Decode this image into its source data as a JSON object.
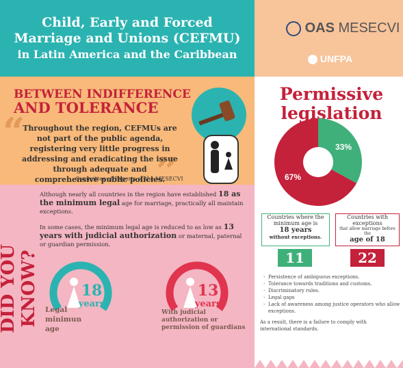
{
  "header": {
    "title": [
      "Child, Early and Forced",
      "Marriage and Unions (CEFMU)",
      "in Latin America and the Caribbean"
    ],
    "logos": [
      "OAS",
      "MESECVI",
      "UNFPA"
    ]
  },
  "intro": {
    "heading": [
      "BETWEEN INDIFFERENCE",
      "AND TOLERANCE"
    ],
    "quote": "Throughout the region, CEFMUs are not part of the public agenda, registering very little progress in addressing and eradicating the issue through adequate and comprehensive public policies.",
    "source": "Committee of Experts of the MESECVI"
  },
  "chart_data": {
    "type": "pie",
    "title": "Permissive legislation",
    "values": [
      67,
      33
    ],
    "value_labels": [
      "67%",
      "33%"
    ],
    "colors": [
      "#c4213a",
      "#3fb07a"
    ]
  },
  "stats": [
    {
      "text": [
        "Countries where the minimum age is",
        "18 years",
        "without exceptions."
      ],
      "count": 11
    },
    {
      "text": [
        "Countries with exceptions",
        "that allow marriage before the",
        "age of 18"
      ],
      "count": 22
    }
  ],
  "did_you_know": {
    "label": "DID YOU KNOW?",
    "paragraphs": [
      [
        "Although nearly all countries in the region have established ",
        "18 as the minimum legal",
        " age for marriage, practically all maintain exceptions."
      ],
      [
        "In some cases, the minimum legal age is reduced to as low as ",
        "13 years with judicial authorization",
        " or maternal, paternal or guardian permission."
      ]
    ],
    "gauges": [
      {
        "number": 18,
        "unit": "years",
        "caption": "Legal minimun age"
      },
      {
        "number": 13,
        "unit": "years",
        "caption": "With judicial authorization or permission of guardians"
      }
    ]
  },
  "findings": {
    "items": [
      "Persistence of ambiguous exceptions.",
      "Tolerance towards traditions and customs.",
      "Discriminatory rules.",
      "Legal gaps",
      "Lack of awareness among justice operators who allow exceptions."
    ],
    "conclusion": "As a result, there is a failure to comply with international standards."
  }
}
